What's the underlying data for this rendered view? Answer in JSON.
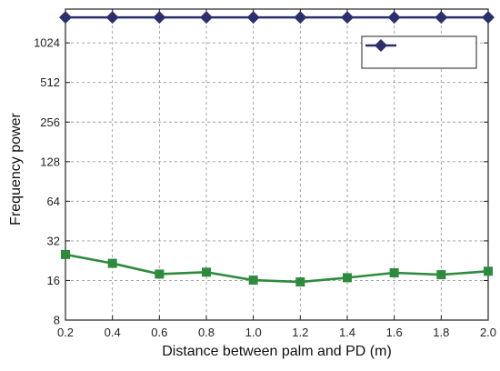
{
  "chart_data": {
    "type": "line",
    "title": "",
    "xlabel": "Distance between palm and PD (m)",
    "ylabel": "Frequency power",
    "y_scale": "log2",
    "xlim": [
      0.2,
      2.0
    ],
    "ylim": [
      8,
      1850
    ],
    "x_ticks": [
      "0.2",
      "0.4",
      "0.6",
      "0.8",
      "1.0",
      "1.2",
      "1.4",
      "1.6",
      "1.8",
      "2.0"
    ],
    "y_ticks": [
      "8",
      "16",
      "32",
      "64",
      "128",
      "256",
      "512",
      "1024"
    ],
    "grid": true,
    "legend_position": "top-right",
    "x": [
      0.2,
      0.4,
      0.6,
      0.8,
      1.0,
      1.2,
      1.4,
      1.6,
      1.8,
      2.0
    ],
    "series": [
      {
        "color": "#2b2f6e",
        "marker": "diamond",
        "values": [
          1600,
          1600,
          1600,
          1600,
          1600,
          1600,
          1600,
          1600,
          1600,
          1600
        ]
      },
      {
        "color": "#2e8b3e",
        "marker": "square",
        "values": [
          25.2,
          21.6,
          17.9,
          18.5,
          16.1,
          15.6,
          16.8,
          18.3,
          17.7,
          18.8
        ]
      }
    ]
  }
}
